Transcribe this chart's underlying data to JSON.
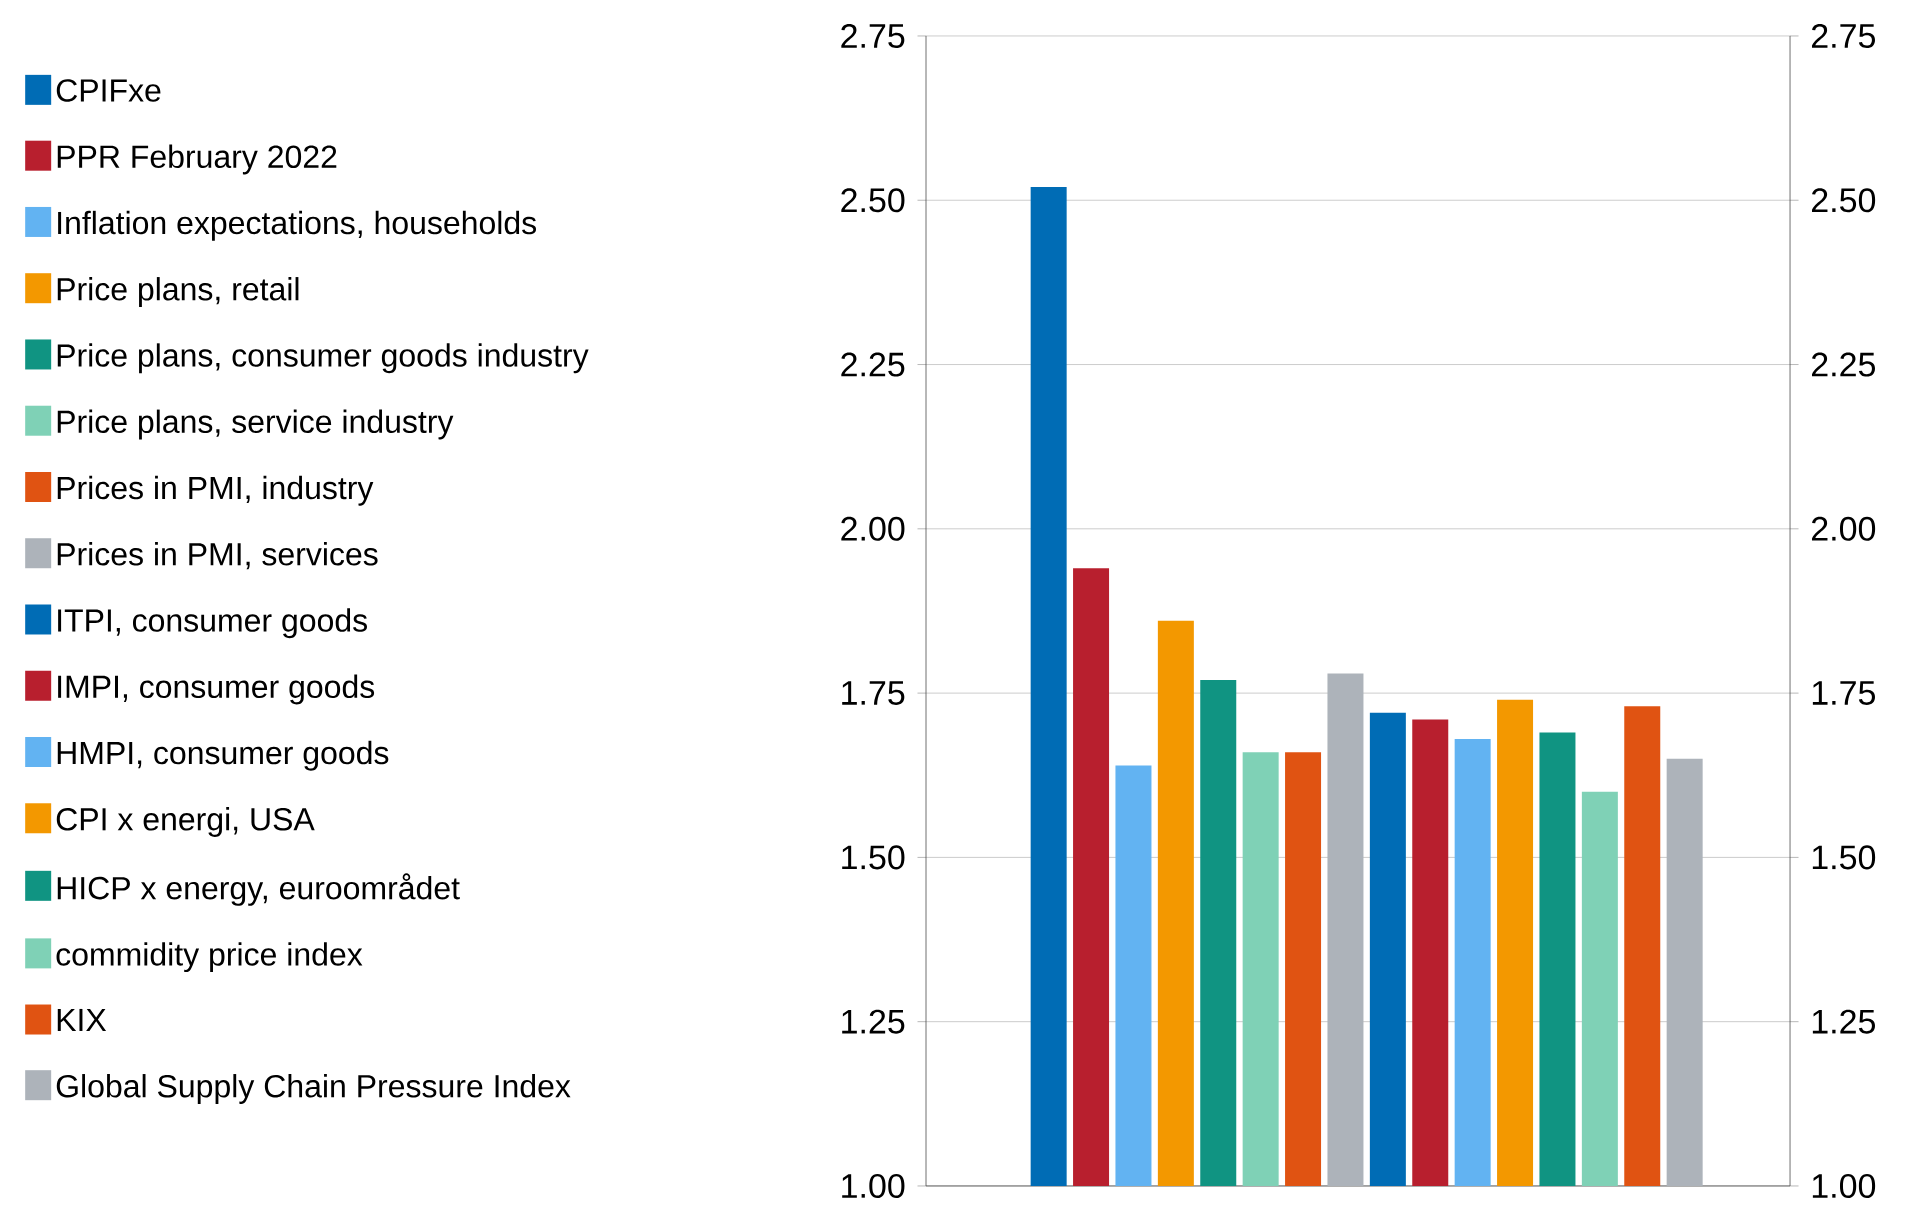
{
  "chart_data": {
    "type": "bar",
    "categories": [
      null
    ],
    "series": [
      {
        "name": "CPIFxe",
        "color": "#006cb5",
        "values": [
          2.52
        ]
      },
      {
        "name": "PPR February 2022",
        "color": "#b81f2e",
        "values": [
          1.94
        ]
      },
      {
        "name": "Inflation expectations, households",
        "color": "#62b3f2",
        "values": [
          1.64
        ]
      },
      {
        "name": "Price plans, retail",
        "color": "#f39800",
        "values": [
          1.86
        ]
      },
      {
        "name": "Price plans, consumer goods industry",
        "color": "#109482",
        "values": [
          1.77
        ]
      },
      {
        "name": "Price plans, service industry",
        "color": "#7fd1b6",
        "values": [
          1.66
        ]
      },
      {
        "name": "Prices in PMI, industry",
        "color": "#e05312",
        "values": [
          1.66
        ]
      },
      {
        "name": "Prices in PMI, services",
        "color": "#adb3ba",
        "values": [
          1.78
        ]
      },
      {
        "name": "ITPI, consumer goods",
        "color": "#006cb5",
        "values": [
          1.72
        ]
      },
      {
        "name": "IMPI, consumer goods",
        "color": "#b81f2e",
        "values": [
          1.71
        ]
      },
      {
        "name": "HMPI, consumer goods",
        "color": "#62b3f2",
        "values": [
          1.68
        ]
      },
      {
        "name": "CPI x energi, USA",
        "color": "#f39800",
        "values": [
          1.74
        ]
      },
      {
        "name": "HICP x energy, euroområdet",
        "color": "#109482",
        "values": [
          1.69
        ]
      },
      {
        "name": "commidity price index",
        "color": "#7fd1b6",
        "values": [
          1.6
        ]
      },
      {
        "name": "KIX",
        "color": "#e05312",
        "values": [
          1.73
        ]
      },
      {
        "name": "Global Supply Chain Pressure Index",
        "color": "#adb3ba",
        "values": [
          1.65
        ]
      }
    ],
    "ylim": [
      1.0,
      2.75
    ],
    "yticks": [
      {
        "value": 1.0,
        "label": "1.00"
      },
      {
        "value": 1.25,
        "label": "1.25"
      },
      {
        "value": 1.5,
        "label": "1.50"
      },
      {
        "value": 1.75,
        "label": "1.75"
      },
      {
        "value": 2.0,
        "label": "2.00"
      },
      {
        "value": 2.25,
        "label": "2.25"
      },
      {
        "value": 2.5,
        "label": "2.50"
      },
      {
        "value": 2.75,
        "label": "2.75"
      }
    ],
    "y2lim": [
      1.0,
      2.75
    ],
    "y2ticks": [
      {
        "value": 1.0,
        "label": "1.00"
      },
      {
        "value": 1.25,
        "label": "1.25"
      },
      {
        "value": 1.5,
        "label": "1.50"
      },
      {
        "value": 1.75,
        "label": "1.75"
      },
      {
        "value": 2.0,
        "label": "2.00"
      },
      {
        "value": 2.25,
        "label": "2.25"
      },
      {
        "value": 2.5,
        "label": "2.50"
      },
      {
        "value": 2.75,
        "label": "2.75"
      }
    ],
    "grid": "y",
    "legend": "left"
  }
}
